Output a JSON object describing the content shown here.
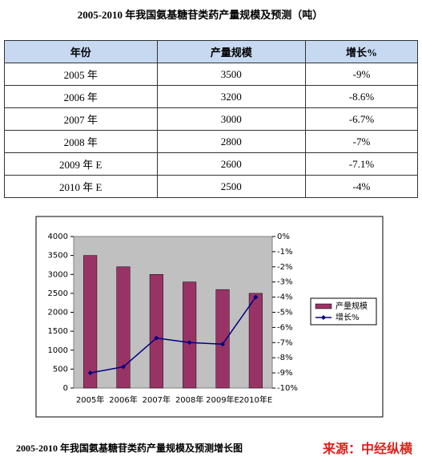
{
  "title": "2005-2010 年我国氨基糖苷类药产量规模及预测（吨）",
  "table": {
    "header": [
      "年份",
      "产量规模",
      "增长%"
    ],
    "rows": [
      [
        "2005 年",
        "3500",
        "-9%"
      ],
      [
        "2006 年",
        "3200",
        "-8.6%"
      ],
      [
        "2007 年",
        "3000",
        "-6.7%"
      ],
      [
        "2008 年",
        "2800",
        "-7%"
      ],
      [
        "2009 年 E",
        "2600",
        "-7.1%"
      ],
      [
        "2010 年 E",
        "2500",
        "-4%"
      ]
    ]
  },
  "chart_data": {
    "type": "bar",
    "categories": [
      "2005年",
      "2006年",
      "2007年",
      "2008年",
      "2009年E",
      "2010年E"
    ],
    "series": [
      {
        "name": "产量规模",
        "color": "#993366",
        "values": [
          3500,
          3200,
          3000,
          2800,
          2600,
          2500
        ]
      },
      {
        "name": "增长%",
        "color": "#000080",
        "axis": "y2",
        "type": "line",
        "values": [
          -9,
          -8.6,
          -6.7,
          -7,
          -7.1,
          -4
        ]
      }
    ],
    "ylim": [
      0,
      4000
    ],
    "yticks": [
      0,
      500,
      1000,
      1500,
      2000,
      2500,
      3000,
      3500,
      4000
    ],
    "y2lim": [
      -10,
      0
    ],
    "y2ticks": [
      {
        "value": 0,
        "label": "0%"
      },
      {
        "value": -1,
        "label": "-1%"
      },
      {
        "value": -2,
        "label": "-2%"
      },
      {
        "value": -3,
        "label": "-3%"
      },
      {
        "value": -4,
        "label": "-4%"
      },
      {
        "value": -5,
        "label": "-5%"
      },
      {
        "value": -6,
        "label": "-6%"
      },
      {
        "value": -7,
        "label": "-7%"
      },
      {
        "value": -8,
        "label": "-8%"
      },
      {
        "value": -9,
        "label": "-9%"
      },
      {
        "value": -10,
        "label": "-10%"
      }
    ],
    "grid": false,
    "legend": "right",
    "plot_background": "#c0c0c0"
  },
  "caption": "2005-2010 年我国氨基糖苷类药产量规模及预测增长图",
  "watermark": "来源：中经纵横"
}
